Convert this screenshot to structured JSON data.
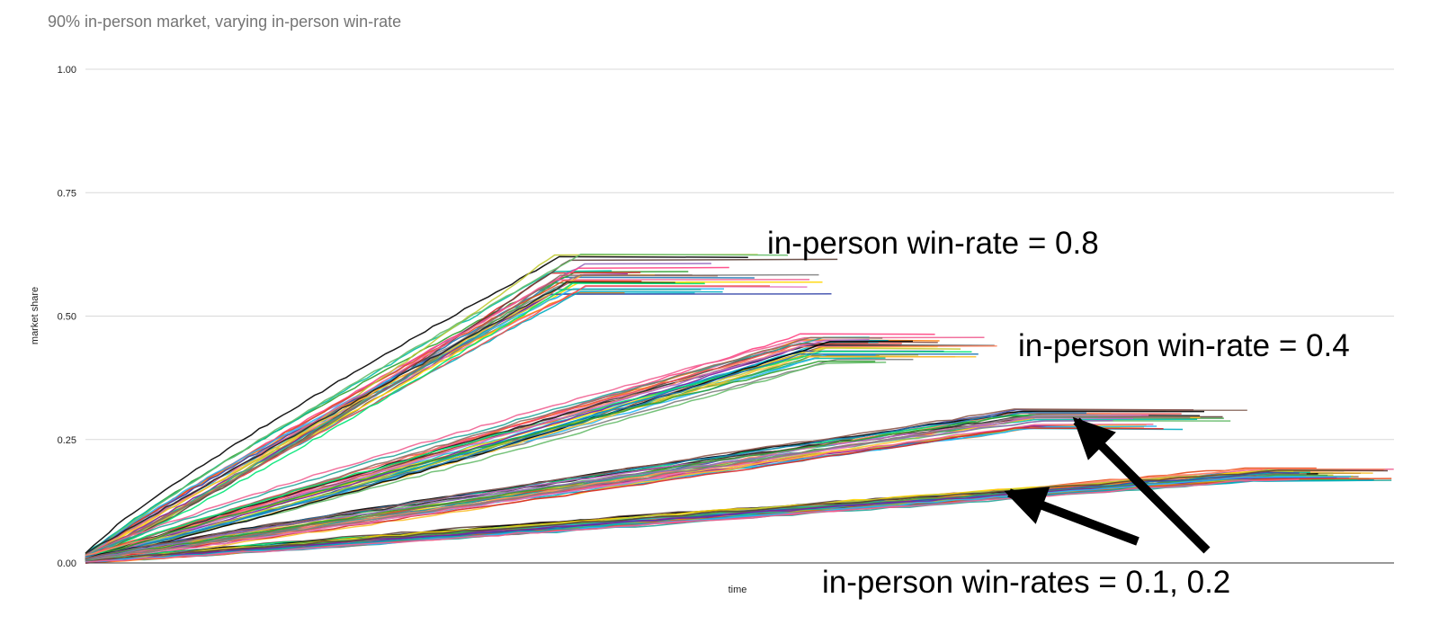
{
  "chart_data": {
    "type": "line",
    "title": "90% in-person market, varying in-person win-rate",
    "xlabel": "time",
    "ylabel": "market share",
    "ylim": [
      0,
      1
    ],
    "yticks": [
      "0.00",
      "0.25",
      "0.50",
      "0.75",
      "1.00"
    ],
    "grid": true,
    "legend": "none",
    "groups": [
      {
        "label": "in-person win-rate = 0.8",
        "plateau_start": 0.37,
        "plateau_value": 0.585,
        "start": 0.012,
        "end_range": [
          0.39,
          0.58
        ],
        "count": 30
      },
      {
        "label": "in-person win-rate = 0.4",
        "plateau_start": 0.56,
        "plateau_value": 0.435,
        "start": 0.01,
        "end_range": [
          0.59,
          0.7
        ],
        "count": 30
      },
      {
        "label": "",
        "plateau_start": 0.72,
        "plateau_value": 0.29,
        "start": 0.006,
        "end_range": [
          0.74,
          0.89
        ],
        "count": 30
      },
      {
        "label": "",
        "plateau_start": 0.9,
        "plateau_value": 0.18,
        "start": 0.003,
        "end_range": [
          0.92,
          1.0
        ],
        "count": 40
      }
    ],
    "annotations": [
      {
        "text": "in-person win-rate = 0.8"
      },
      {
        "text": "in-person win-rate = 0.4"
      },
      {
        "text": "in-person win-rates = 0.1, 0.2"
      }
    ],
    "palette": [
      "#000000",
      "#1f77b4",
      "#2ca02c",
      "#d62728",
      "#9467bd",
      "#8c564b",
      "#e377c2",
      "#7f7f7f",
      "#bcbd22",
      "#17becf",
      "#ff7f0e",
      "#00bfa5",
      "#ffd600",
      "#ff4081",
      "#3949ab",
      "#43a047",
      "#e64a19",
      "#00acc1",
      "#7b1fa2",
      "#c0ca33",
      "#5d4037",
      "#29b6f6",
      "#f06292",
      "#26a69a",
      "#fbc02d",
      "#ef5350",
      "#8d6e63",
      "#66bb6a",
      "#212121",
      "#00e676",
      "#ff8a65",
      "#ba68c8"
    ]
  }
}
